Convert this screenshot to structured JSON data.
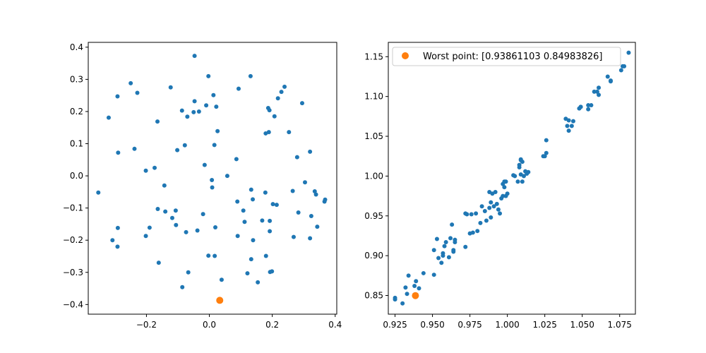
{
  "chart_data": [
    {
      "type": "scatter",
      "title": "",
      "xlabel": "",
      "ylabel": "",
      "xlim": [
        -0.385,
        0.405
      ],
      "ylim": [
        -0.43,
        0.415
      ],
      "xticks": [
        -0.2,
        0.0,
        0.2,
        0.4
      ],
      "xtick_labels": [
        "−0.2",
        "0.0",
        "0.2",
        "0.4"
      ],
      "yticks": [
        -0.4,
        -0.3,
        -0.2,
        -0.1,
        0.0,
        0.1,
        0.2,
        0.3,
        0.4
      ],
      "ytick_labels": [
        "−0.4",
        "−0.3",
        "−0.2",
        "−0.1",
        "0.0",
        "0.1",
        "0.2",
        "0.3",
        "0.4"
      ],
      "grid": false,
      "series": [
        {
          "color": "#1f77b4",
          "points": [
            [
              -0.353,
              -0.052
            ],
            [
              -0.32,
              0.181
            ],
            [
              -0.308,
              -0.2
            ],
            [
              -0.292,
              0.247
            ],
            [
              -0.29,
              0.072
            ],
            [
              -0.291,
              -0.162
            ],
            [
              -0.292,
              -0.22
            ],
            [
              -0.25,
              0.288
            ],
            [
              -0.238,
              0.084
            ],
            [
              -0.229,
              0.258
            ],
            [
              -0.202,
              0.016
            ],
            [
              -0.202,
              -0.187
            ],
            [
              -0.19,
              -0.161
            ],
            [
              -0.174,
              0.025
            ],
            [
              -0.165,
              0.169
            ],
            [
              -0.164,
              -0.103
            ],
            [
              -0.161,
              -0.27
            ],
            [
              -0.143,
              -0.03
            ],
            [
              -0.14,
              -0.111
            ],
            [
              -0.123,
              0.275
            ],
            [
              -0.118,
              -0.131
            ],
            [
              -0.107,
              -0.108
            ],
            [
              -0.106,
              -0.153
            ],
            [
              -0.102,
              0.08
            ],
            [
              -0.087,
              0.203
            ],
            [
              -0.086,
              -0.346
            ],
            [
              -0.078,
              0.095
            ],
            [
              -0.074,
              -0.175
            ],
            [
              -0.07,
              0.184
            ],
            [
              -0.067,
              -0.3
            ],
            [
              -0.047,
              0.373
            ],
            [
              -0.047,
              0.232
            ],
            [
              -0.05,
              0.198
            ],
            [
              -0.038,
              -0.17
            ],
            [
              -0.033,
              0.2
            ],
            [
              -0.02,
              -0.119
            ],
            [
              -0.015,
              0.034
            ],
            [
              -0.01,
              0.219
            ],
            [
              -0.003,
              0.31
            ],
            [
              -0.003,
              -0.248
            ],
            [
              0.008,
              -0.013
            ],
            [
              0.009,
              -0.036
            ],
            [
              0.013,
              0.251
            ],
            [
              0.016,
              0.096
            ],
            [
              0.017,
              -0.249
            ],
            [
              0.019,
              -0.16
            ],
            [
              0.022,
              0.215
            ],
            [
              0.026,
              0.139
            ],
            [
              0.039,
              -0.323
            ],
            [
              0.057,
              0.0
            ],
            [
              0.086,
              0.052
            ],
            [
              0.089,
              -0.08
            ],
            [
              0.09,
              -0.187
            ],
            [
              0.093,
              0.271
            ],
            [
              0.108,
              -0.108
            ],
            [
              0.112,
              -0.143
            ],
            [
              0.121,
              -0.303
            ],
            [
              0.131,
              0.31
            ],
            [
              0.133,
              -0.043
            ],
            [
              0.133,
              -0.259
            ],
            [
              0.138,
              -0.073
            ],
            [
              0.139,
              -0.2
            ],
            [
              0.154,
              -0.331
            ],
            [
              0.168,
              -0.139
            ],
            [
              0.178,
              -0.052
            ],
            [
              0.179,
              0.132
            ],
            [
              0.18,
              -0.249
            ],
            [
              0.187,
              0.211
            ],
            [
              0.189,
              0.136
            ],
            [
              0.191,
              0.204
            ],
            [
              0.192,
              -0.14
            ],
            [
              0.192,
              -0.172
            ],
            [
              0.193,
              -0.299
            ],
            [
              0.199,
              -0.297
            ],
            [
              0.202,
              -0.088
            ],
            [
              0.207,
              0.185
            ],
            [
              0.214,
              -0.09
            ],
            [
              0.218,
              0.241
            ],
            [
              0.229,
              0.261
            ],
            [
              0.239,
              0.277
            ],
            [
              0.253,
              0.136
            ],
            [
              0.265,
              -0.047
            ],
            [
              0.268,
              -0.19
            ],
            [
              0.279,
              0.058
            ],
            [
              0.283,
              -0.114
            ],
            [
              0.295,
              0.226
            ],
            [
              0.304,
              -0.02
            ],
            [
              0.32,
              0.075
            ],
            [
              0.32,
              -0.194
            ],
            [
              0.324,
              -0.125
            ],
            [
              0.335,
              -0.048
            ],
            [
              0.339,
              -0.058
            ],
            [
              0.343,
              -0.158
            ],
            [
              0.366,
              -0.08
            ],
            [
              0.368,
              -0.074
            ]
          ]
        },
        {
          "color": "#ff7f0e",
          "points": [
            [
              0.033,
              -0.387
            ]
          ]
        }
      ]
    },
    {
      "type": "scatter",
      "title": "",
      "xlabel": "",
      "ylabel": "",
      "xlim": [
        0.9205,
        1.0855
      ],
      "ylim": [
        0.8265,
        1.168
      ],
      "xticks": [
        0.925,
        0.95,
        0.975,
        1.0,
        1.025,
        1.05,
        1.075
      ],
      "xtick_labels": [
        "0.925",
        "0.950",
        "0.975",
        "1.000",
        "1.025",
        "1.050",
        "1.075"
      ],
      "yticks": [
        0.85,
        0.9,
        0.95,
        1.0,
        1.05,
        1.1,
        1.15
      ],
      "ytick_labels": [
        "0.85",
        "0.90",
        "0.95",
        "1.00",
        "1.05",
        "1.10",
        "1.15"
      ],
      "grid": false,
      "legend": {
        "placement": "upper-left",
        "entries": [
          {
            "label": "Worst point: [0.93861103 0.84983826]",
            "color": "#ff7f0e"
          }
        ]
      },
      "series": [
        {
          "color": "#1f77b4",
          "points": [
            [
              0.925,
              0.847
            ],
            [
              0.925,
              0.845
            ],
            [
              0.93,
              0.84
            ],
            [
              0.932,
              0.86
            ],
            [
              0.933,
              0.852
            ],
            [
              0.934,
              0.875
            ],
            [
              0.938,
              0.862
            ],
            [
              0.939,
              0.868
            ],
            [
              0.941,
              0.859
            ],
            [
              0.944,
              0.878
            ],
            [
              0.951,
              0.907
            ],
            [
              0.951,
              0.876
            ],
            [
              0.953,
              0.921
            ],
            [
              0.954,
              0.897
            ],
            [
              0.956,
              0.891
            ],
            [
              0.957,
              0.903
            ],
            [
              0.957,
              0.9
            ],
            [
              0.958,
              0.912
            ],
            [
              0.959,
              0.917
            ],
            [
              0.961,
              0.898
            ],
            [
              0.962,
              0.922
            ],
            [
              0.963,
              0.939
            ],
            [
              0.964,
              0.907
            ],
            [
              0.964,
              0.905
            ],
            [
              0.965,
              0.92
            ],
            [
              0.965,
              0.917
            ],
            [
              0.972,
              0.953
            ],
            [
              0.972,
              0.911
            ],
            [
              0.973,
              0.952
            ],
            [
              0.975,
              0.928
            ],
            [
              0.976,
              0.952
            ],
            [
              0.977,
              0.929
            ],
            [
              0.979,
              0.953
            ],
            [
              0.98,
              0.931
            ],
            [
              0.982,
              0.941
            ],
            [
              0.983,
              0.962
            ],
            [
              0.985,
              0.956
            ],
            [
              0.986,
              0.944
            ],
            [
              0.988,
              0.98
            ],
            [
              0.988,
              0.96
            ],
            [
              0.989,
              0.948
            ],
            [
              0.989,
              0.967
            ],
            [
              0.99,
              0.978
            ],
            [
              0.991,
              0.962
            ],
            [
              0.992,
              0.98
            ],
            [
              0.993,
              0.965
            ],
            [
              0.994,
              0.958
            ],
            [
              0.995,
              0.953
            ],
            [
              0.996,
              0.972
            ],
            [
              0.997,
              0.99
            ],
            [
              0.997,
              0.975
            ],
            [
              0.998,
              0.986
            ],
            [
              0.998,
              0.993
            ],
            [
              0.999,
              0.993
            ],
            [
              0.999,
              0.975
            ],
            [
              1.0,
              0.978
            ],
            [
              1.004,
              1.001
            ],
            [
              1.005,
              1.0
            ],
            [
              1.007,
              0.993
            ],
            [
              1.008,
              1.011
            ],
            [
              1.008,
              1.014
            ],
            [
              1.009,
              1.021
            ],
            [
              1.009,
              1.02
            ],
            [
              1.009,
              1.002
            ],
            [
              1.01,
              1.018
            ],
            [
              1.01,
              0.993
            ],
            [
              1.011,
              1.0
            ],
            [
              1.012,
              1.006
            ],
            [
              1.013,
              1.003
            ],
            [
              1.014,
              1.005
            ],
            [
              1.024,
              1.025
            ],
            [
              1.025,
              1.025
            ],
            [
              1.026,
              1.029
            ],
            [
              1.026,
              1.045
            ],
            [
              1.039,
              1.072
            ],
            [
              1.04,
              1.063
            ],
            [
              1.041,
              1.057
            ],
            [
              1.041,
              1.07
            ],
            [
              1.043,
              1.063
            ],
            [
              1.044,
              1.069
            ],
            [
              1.048,
              1.085
            ],
            [
              1.049,
              1.087
            ],
            [
              1.049,
              1.087
            ],
            [
              1.054,
              1.084
            ],
            [
              1.054,
              1.089
            ],
            [
              1.056,
              1.089
            ],
            [
              1.058,
              1.106
            ],
            [
              1.06,
              1.106
            ],
            [
              1.061,
              1.102
            ],
            [
              1.061,
              1.111
            ],
            [
              1.067,
              1.125
            ],
            [
              1.069,
              1.119
            ],
            [
              1.069,
              1.12
            ],
            [
              1.076,
              1.133
            ],
            [
              1.077,
              1.138
            ],
            [
              1.078,
              1.138
            ],
            [
              1.081,
              1.155
            ]
          ]
        },
        {
          "name": "Worst point: [0.93861103 0.84983826]",
          "color": "#ff7f0e",
          "points": [
            [
              0.93861103,
              0.84983826
            ]
          ]
        }
      ]
    }
  ]
}
